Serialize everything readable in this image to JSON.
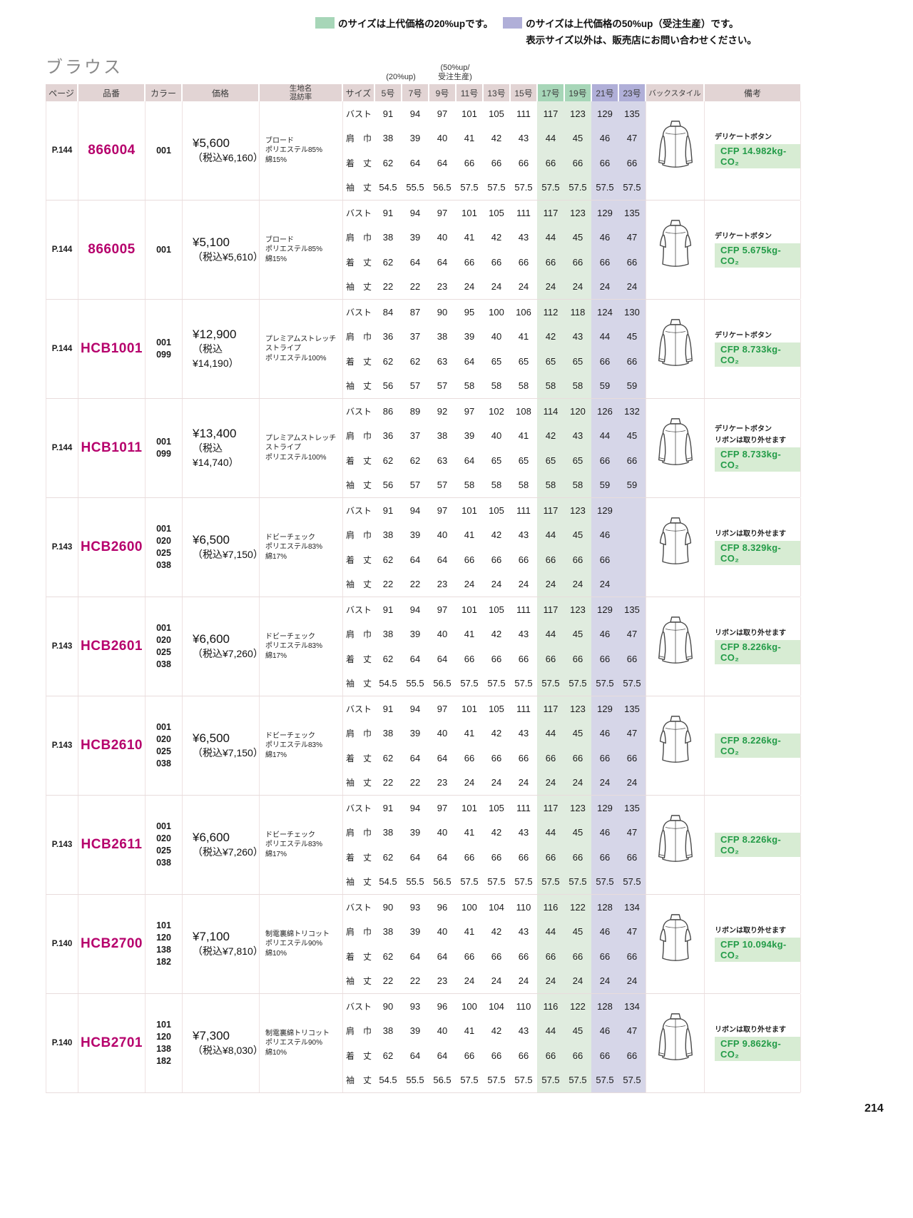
{
  "page_title": "ブラウス",
  "page_number": "214",
  "palette": {
    "green_header": "#a7d6b8",
    "purple_header": "#b0afd8",
    "green_tint": "#e0ecdf",
    "purple_tint": "#d6d6e8",
    "table_header_bg": "#e2d4d4",
    "product_code_color": "#b6006c",
    "cfp_text_color": "#229b47",
    "cfp_bg_color": "#d7ecd3"
  },
  "legend": {
    "item1": {
      "swatch": "green-swatch",
      "text": "のサイズは上代価格の20%upです。"
    },
    "item2": {
      "swatch": "purple-swatch",
      "text": "のサイズは上代価格の50%up（受注生産）です。",
      "text2": "表示サイズ以外は、販売店にお問い合わせください。"
    }
  },
  "table": {
    "group_labels": {
      "green": "(20%up)",
      "purple_line1": "(50%up/",
      "purple_line2": "受注生産)"
    },
    "headers": {
      "page": "ページ",
      "code": "品番",
      "color": "カラー",
      "price": "価格",
      "fabric_line1": "生地名",
      "fabric_line2": "混紡率",
      "size": "サイズ",
      "back": "バックスタイル",
      "remarks": "備考"
    },
    "size_columns": [
      "5号",
      "7号",
      "9号",
      "11号",
      "13号",
      "15号",
      "17号",
      "19号",
      "21号",
      "23号"
    ],
    "measure_labels": [
      "バスト",
      "肩　巾",
      "着　丈",
      "袖　丈"
    ],
    "products": [
      {
        "page": "P.144",
        "code": "866004",
        "colors": [
          "001"
        ],
        "price": "¥5,600",
        "price_tax": "（税込¥6,160）",
        "fabric": [
          "ブロード",
          "ポリエステル85%",
          "綿15%"
        ],
        "rows": [
          [
            "91",
            "94",
            "97",
            "101",
            "105",
            "111",
            "117",
            "123",
            "129",
            "135"
          ],
          [
            "38",
            "39",
            "40",
            "41",
            "42",
            "43",
            "44",
            "45",
            "46",
            "47"
          ],
          [
            "62",
            "64",
            "64",
            "66",
            "66",
            "66",
            "66",
            "66",
            "66",
            "66"
          ],
          [
            "54.5",
            "55.5",
            "56.5",
            "57.5",
            "57.5",
            "57.5",
            "57.5",
            "57.5",
            "57.5",
            "57.5"
          ]
        ],
        "sleeve": "long",
        "notes": [
          "デリケートボタン"
        ],
        "cfp": "CFP  14.982kg-CO₂"
      },
      {
        "page": "P.144",
        "code": "866005",
        "colors": [
          "001"
        ],
        "price": "¥5,100",
        "price_tax": "（税込¥5,610）",
        "fabric": [
          "ブロード",
          "ポリエステル85%",
          "綿15%"
        ],
        "rows": [
          [
            "91",
            "94",
            "97",
            "101",
            "105",
            "111",
            "117",
            "123",
            "129",
            "135"
          ],
          [
            "38",
            "39",
            "40",
            "41",
            "42",
            "43",
            "44",
            "45",
            "46",
            "47"
          ],
          [
            "62",
            "64",
            "64",
            "66",
            "66",
            "66",
            "66",
            "66",
            "66",
            "66"
          ],
          [
            "22",
            "22",
            "23",
            "24",
            "24",
            "24",
            "24",
            "24",
            "24",
            "24"
          ]
        ],
        "sleeve": "short",
        "notes": [
          "デリケートボタン"
        ],
        "cfp": "CFP  5.675kg-CO₂"
      },
      {
        "page": "P.144",
        "code": "HCB1001",
        "colors": [
          "001",
          "099"
        ],
        "price": "¥12,900",
        "price_tax": "（税込¥14,190）",
        "fabric": [
          "プレミアムストレッチストライプ",
          "ポリエステル100%"
        ],
        "rows": [
          [
            "84",
            "87",
            "90",
            "95",
            "100",
            "106",
            "112",
            "118",
            "124",
            "130"
          ],
          [
            "36",
            "37",
            "38",
            "39",
            "40",
            "41",
            "42",
            "43",
            "44",
            "45"
          ],
          [
            "62",
            "62",
            "63",
            "64",
            "65",
            "65",
            "65",
            "65",
            "66",
            "66"
          ],
          [
            "56",
            "57",
            "57",
            "58",
            "58",
            "58",
            "58",
            "58",
            "59",
            "59"
          ]
        ],
        "sleeve": "long",
        "notes": [
          "デリケートボタン"
        ],
        "cfp": "CFP  8.733kg-CO₂"
      },
      {
        "page": "P.144",
        "code": "HCB1011",
        "colors": [
          "001",
          "099"
        ],
        "price": "¥13,400",
        "price_tax": "（税込¥14,740）",
        "fabric": [
          "プレミアムストレッチストライプ",
          "ポリエステル100%"
        ],
        "rows": [
          [
            "86",
            "89",
            "92",
            "97",
            "102",
            "108",
            "114",
            "120",
            "126",
            "132"
          ],
          [
            "36",
            "37",
            "38",
            "39",
            "40",
            "41",
            "42",
            "43",
            "44",
            "45"
          ],
          [
            "62",
            "62",
            "63",
            "64",
            "65",
            "65",
            "65",
            "65",
            "66",
            "66"
          ],
          [
            "56",
            "57",
            "57",
            "58",
            "58",
            "58",
            "58",
            "58",
            "59",
            "59"
          ]
        ],
        "sleeve": "long",
        "notes": [
          "デリケートボタン",
          "リボンは取り外せます"
        ],
        "cfp": "CFP  8.733kg-CO₂"
      },
      {
        "page": "P.143",
        "code": "HCB2600",
        "colors": [
          "001",
          "020",
          "025",
          "038"
        ],
        "price": "¥6,500",
        "price_tax": "（税込¥7,150）",
        "fabric": [
          "ドビーチェック",
          "ポリエステル83%",
          "綿17%"
        ],
        "rows": [
          [
            "91",
            "94",
            "97",
            "101",
            "105",
            "111",
            "117",
            "123",
            "129",
            ""
          ],
          [
            "38",
            "39",
            "40",
            "41",
            "42",
            "43",
            "44",
            "45",
            "46",
            ""
          ],
          [
            "62",
            "64",
            "64",
            "66",
            "66",
            "66",
            "66",
            "66",
            "66",
            ""
          ],
          [
            "22",
            "22",
            "23",
            "24",
            "24",
            "24",
            "24",
            "24",
            "24",
            ""
          ]
        ],
        "sleeve": "short",
        "notes": [
          "リボンは取り外せます"
        ],
        "cfp": "CFP  8.329kg-CO₂"
      },
      {
        "page": "P.143",
        "code": "HCB2601",
        "colors": [
          "001",
          "020",
          "025",
          "038"
        ],
        "price": "¥6,600",
        "price_tax": "（税込¥7,260）",
        "fabric": [
          "ドビーチェック",
          "ポリエステル83%",
          "綿17%"
        ],
        "rows": [
          [
            "91",
            "94",
            "97",
            "101",
            "105",
            "111",
            "117",
            "123",
            "129",
            "135"
          ],
          [
            "38",
            "39",
            "40",
            "41",
            "42",
            "43",
            "44",
            "45",
            "46",
            "47"
          ],
          [
            "62",
            "64",
            "64",
            "66",
            "66",
            "66",
            "66",
            "66",
            "66",
            "66"
          ],
          [
            "54.5",
            "55.5",
            "56.5",
            "57.5",
            "57.5",
            "57.5",
            "57.5",
            "57.5",
            "57.5",
            "57.5"
          ]
        ],
        "sleeve": "long",
        "notes": [
          "リボンは取り外せます"
        ],
        "cfp": "CFP  8.226kg-CO₂"
      },
      {
        "page": "P.143",
        "code": "HCB2610",
        "colors": [
          "001",
          "020",
          "025",
          "038"
        ],
        "price": "¥6,500",
        "price_tax": "（税込¥7,150）",
        "fabric": [
          "ドビーチェック",
          "ポリエステル83%",
          "綿17%"
        ],
        "rows": [
          [
            "91",
            "94",
            "97",
            "101",
            "105",
            "111",
            "117",
            "123",
            "129",
            "135"
          ],
          [
            "38",
            "39",
            "40",
            "41",
            "42",
            "43",
            "44",
            "45",
            "46",
            "47"
          ],
          [
            "62",
            "64",
            "64",
            "66",
            "66",
            "66",
            "66",
            "66",
            "66",
            "66"
          ],
          [
            "22",
            "22",
            "23",
            "24",
            "24",
            "24",
            "24",
            "24",
            "24",
            "24"
          ]
        ],
        "sleeve": "short",
        "notes": [],
        "cfp": "CFP  8.226kg-CO₂"
      },
      {
        "page": "P.143",
        "code": "HCB2611",
        "colors": [
          "001",
          "020",
          "025",
          "038"
        ],
        "price": "¥6,600",
        "price_tax": "（税込¥7,260）",
        "fabric": [
          "ドビーチェック",
          "ポリエステル83%",
          "綿17%"
        ],
        "rows": [
          [
            "91",
            "94",
            "97",
            "101",
            "105",
            "111",
            "117",
            "123",
            "129",
            "135"
          ],
          [
            "38",
            "39",
            "40",
            "41",
            "42",
            "43",
            "44",
            "45",
            "46",
            "47"
          ],
          [
            "62",
            "64",
            "64",
            "66",
            "66",
            "66",
            "66",
            "66",
            "66",
            "66"
          ],
          [
            "54.5",
            "55.5",
            "56.5",
            "57.5",
            "57.5",
            "57.5",
            "57.5",
            "57.5",
            "57.5",
            "57.5"
          ]
        ],
        "sleeve": "long",
        "notes": [],
        "cfp": "CFP  8.226kg-CO₂"
      },
      {
        "page": "P.140",
        "code": "HCB2700",
        "colors": [
          "101",
          "120",
          "138",
          "182"
        ],
        "price": "¥7,100",
        "price_tax": "（税込¥7,810）",
        "fabric": [
          "制電裏綿トリコット",
          "ポリエステル90%",
          "綿10%"
        ],
        "rows": [
          [
            "90",
            "93",
            "96",
            "100",
            "104",
            "110",
            "116",
            "122",
            "128",
            "134"
          ],
          [
            "38",
            "39",
            "40",
            "41",
            "42",
            "43",
            "44",
            "45",
            "46",
            "47"
          ],
          [
            "62",
            "64",
            "64",
            "66",
            "66",
            "66",
            "66",
            "66",
            "66",
            "66"
          ],
          [
            "22",
            "22",
            "23",
            "24",
            "24",
            "24",
            "24",
            "24",
            "24",
            "24"
          ]
        ],
        "sleeve": "short",
        "notes": [
          "リボンは取り外せます"
        ],
        "cfp": "CFP  10.094kg-CO₂"
      },
      {
        "page": "P.140",
        "code": "HCB2701",
        "colors": [
          "101",
          "120",
          "138",
          "182"
        ],
        "price": "¥7,300",
        "price_tax": "（税込¥8,030）",
        "fabric": [
          "制電裏綿トリコット",
          "ポリエステル90%",
          "綿10%"
        ],
        "rows": [
          [
            "90",
            "93",
            "96",
            "100",
            "104",
            "110",
            "116",
            "122",
            "128",
            "134"
          ],
          [
            "38",
            "39",
            "40",
            "41",
            "42",
            "43",
            "44",
            "45",
            "46",
            "47"
          ],
          [
            "62",
            "64",
            "64",
            "66",
            "66",
            "66",
            "66",
            "66",
            "66",
            "66"
          ],
          [
            "54.5",
            "55.5",
            "56.5",
            "57.5",
            "57.5",
            "57.5",
            "57.5",
            "57.5",
            "57.5",
            "57.5"
          ]
        ],
        "sleeve": "long",
        "notes": [
          "リボンは取り外せます"
        ],
        "cfp": "CFP  9.862kg-CO₂"
      }
    ]
  }
}
